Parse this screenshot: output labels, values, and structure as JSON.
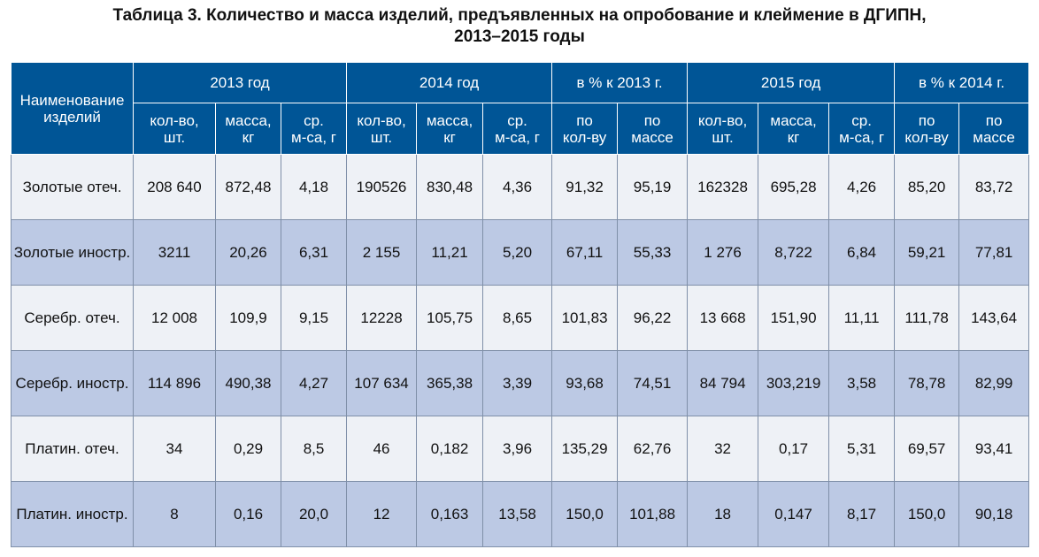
{
  "title": {
    "line1": "Таблица 3. Количество и масса изделий, предъявленных на опробование и клеймение в ДГИПН,",
    "line2": "2013–2015 годы"
  },
  "header": {
    "name_col": {
      "line1": "Наименование",
      "line2": "изделий"
    },
    "groups": [
      "2013 год",
      "2014 год",
      "в % к 2013 г.",
      "2015 год",
      "в % к 2014 г."
    ],
    "sub": [
      {
        "l1": "кол-во,",
        "l2": "шт."
      },
      {
        "l1": "масса,",
        "l2": "кг"
      },
      {
        "l1": "ср.",
        "l2": "м-са, г"
      },
      {
        "l1": "кол-во,",
        "l2": "шт."
      },
      {
        "l1": "масса,",
        "l2": "кг"
      },
      {
        "l1": "ср.",
        "l2": "м-са, г"
      },
      {
        "l1": "по",
        "l2": "кол-ву"
      },
      {
        "l1": "по",
        "l2": "массе"
      },
      {
        "l1": "кол-во,",
        "l2": "шт."
      },
      {
        "l1": "масса,",
        "l2": "кг"
      },
      {
        "l1": "ср.",
        "l2": "м-са, г"
      },
      {
        "l1": "по",
        "l2": "кол-ву"
      },
      {
        "l1": "по",
        "l2": "массе"
      }
    ]
  },
  "rows": [
    {
      "name": "Золотые отеч.",
      "values": [
        "208 640",
        "872,48",
        "4,18",
        "190526",
        "830,48",
        "4,36",
        "91,32",
        "95,19",
        "162328",
        "695,28",
        "4,26",
        "85,20",
        "83,72"
      ]
    },
    {
      "name": "Золотые иностр.",
      "values": [
        "3211",
        "20,26",
        "6,31",
        "2 155",
        "11,21",
        "5,20",
        "67,11",
        "55,33",
        "1 276",
        "8,722",
        "6,84",
        "59,21",
        "77,81"
      ]
    },
    {
      "name": "Серебр. отеч.",
      "values": [
        "12 008",
        "109,9",
        "9,15",
        "12228",
        "105,75",
        "8,65",
        "101,83",
        "96,22",
        "13 668",
        "151,90",
        "11,11",
        "111,78",
        "143,64"
      ]
    },
    {
      "name": "Серебр. иностр.",
      "values": [
        "114 896",
        "490,38",
        "4,27",
        "107 634",
        "365,38",
        "3,39",
        "93,68",
        "74,51",
        "84 794",
        "303,219",
        "3,58",
        "78,78",
        "82,99"
      ]
    },
    {
      "name": "Платин. отеч.",
      "values": [
        "34",
        "0,29",
        "8,5",
        "46",
        "0,182",
        "3,96",
        "135,29",
        "62,76",
        "32",
        "0,17",
        "5,31",
        "69,57",
        "93,41"
      ]
    },
    {
      "name": "Платин. иностр.",
      "values": [
        "8",
        "0,16",
        "20,0",
        "12",
        "0,163",
        "13,58",
        "150,0",
        "101,88",
        "18",
        "0,147",
        "8,17",
        "150,0",
        "90,18"
      ]
    }
  ],
  "colors": {
    "header_bg": "#005596",
    "row_light": "#eef1f6",
    "row_dark": "#bcc9e4"
  }
}
